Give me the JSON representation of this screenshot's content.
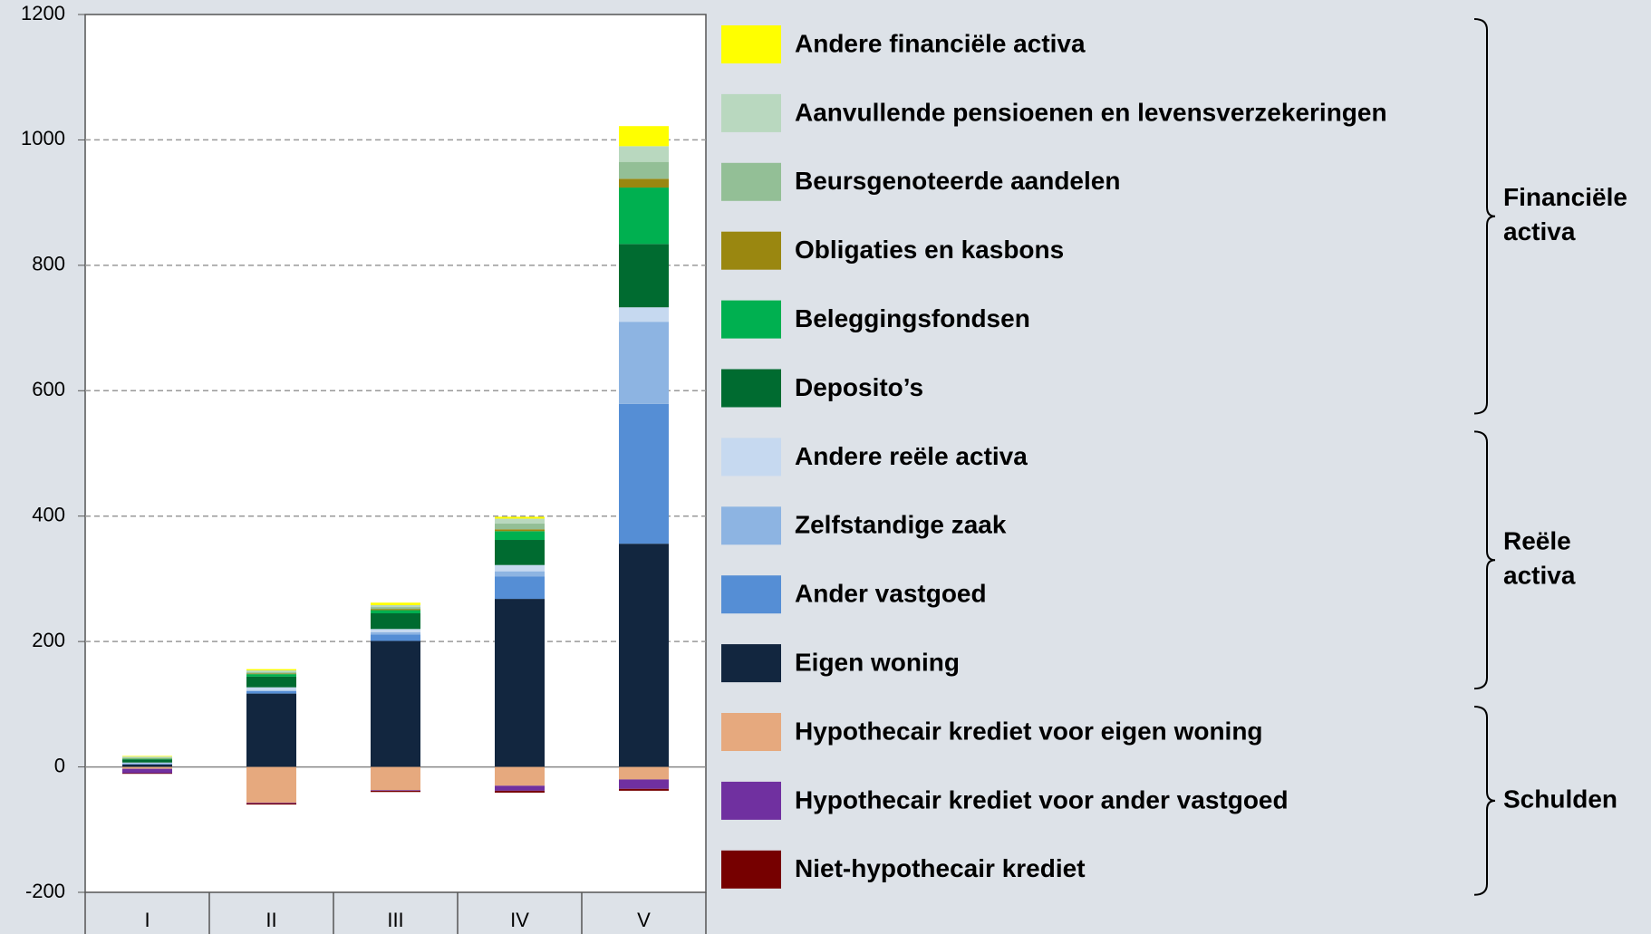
{
  "chart_data": {
    "type": "stacked-bar",
    "categories": [
      "I",
      "II",
      "III",
      "IV",
      "V"
    ],
    "ylim": [
      -200,
      1200
    ],
    "yticks": [
      -200,
      0,
      200,
      400,
      600,
      800,
      1000,
      1200
    ],
    "grid": true,
    "series": [
      {
        "name": "Andere financiële activa",
        "color": "#ffff00",
        "values": [
          1,
          2,
          4,
          3,
          32
        ]
      },
      {
        "name": "Aanvullende pensioenen en levensverzekeringen",
        "color": "#b9d8bf",
        "values": [
          2,
          3,
          3,
          8,
          25
        ]
      },
      {
        "name": "Beursgenoteerde aandelen",
        "color": "#93bf96",
        "values": [
          1,
          2,
          3,
          9,
          27
        ]
      },
      {
        "name": "Obligaties en kasbons",
        "color": "#9a8710",
        "values": [
          0.5,
          1,
          2,
          3,
          14
        ]
      },
      {
        "name": "Beleggingsfondsen",
        "color": "#00b050",
        "values": [
          1,
          4,
          5,
          14,
          90
        ]
      },
      {
        "name": "Deposito’s",
        "color": "#006b30",
        "values": [
          5,
          17,
          25,
          40,
          101
        ]
      },
      {
        "name": "Andere reële activa",
        "color": "#c6d9f0",
        "values": [
          1,
          5,
          5,
          10,
          23
        ]
      },
      {
        "name": "Zelfstandige zaak",
        "color": "#8db4e2",
        "values": [
          1,
          1,
          4,
          8,
          131
        ]
      },
      {
        "name": "Ander vastgoed",
        "color": "#558ed5",
        "values": [
          1,
          4,
          10,
          36,
          223
        ]
      },
      {
        "name": "Eigen woning",
        "color": "#12263f",
        "values": [
          4,
          117,
          201,
          268,
          356
        ]
      },
      {
        "name": "Hypothecair krediet voor eigen woning",
        "color": "#e6a97e",
        "values": [
          -3,
          -57,
          -37,
          -30,
          -20
        ]
      },
      {
        "name": "Hypothecair krediet voor ander vastgoed",
        "color": "#7030a0",
        "values": [
          -7,
          -1,
          -1,
          -8,
          -15
        ]
      },
      {
        "name": "Niet-hypothecair krediet",
        "color": "#760000",
        "values": [
          -1,
          -2,
          -2,
          -3,
          -3
        ]
      }
    ],
    "groups": [
      {
        "label": [
          "Financiële",
          "activa"
        ]
      },
      {
        "label": [
          "Reële",
          "activa"
        ]
      },
      {
        "label": [
          "Schulden"
        ]
      }
    ]
  }
}
